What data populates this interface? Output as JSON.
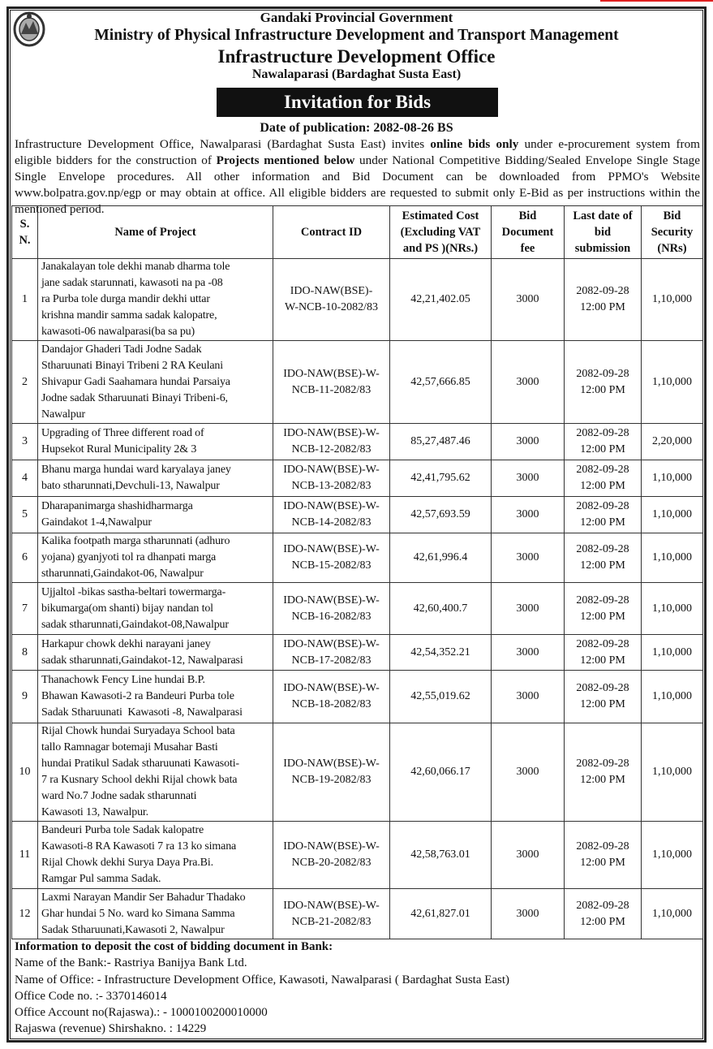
{
  "header": {
    "line1": "Gandaki Provincial Government",
    "line2": "Ministry of Physical Infrastructure Development and Transport Management",
    "line3": "Infrastructure Development Office",
    "line4": "Nawalaparasi  (Bardaghat Susta East)",
    "banner": "Invitation for Bids",
    "publication_date": "Date of publication: 2082-08-26 BS"
  },
  "intro": {
    "p1": "Infrastructure Development Office, Nawalparasi (Bardaghat Susta East) invites ",
    "b1": "online bids only",
    "p2": " under e-procurement system from eligible bidders for the construction of ",
    "b2": "Projects mentioned below",
    "p3": " under National Competitive Bidding/Sealed Envelope Single Stage Single Envelope procedures. All other information and Bid Document can be downloaded from PPMO's Website www.bolpatra.gov.np/egp or may obtain at office. All eligible bidders are requested to submit only E-Bid as per instructions within the mentioned period."
  },
  "table": {
    "headers": [
      "S.\nN.",
      "Name of Project",
      "Contract ID",
      "Estimated Cost\n(Excluding VAT\nand PS )(NRs.)",
      "Bid\nDocument\nfee",
      "Last date of\nbid\nsubmission",
      "Bid\nSecurity\n(NRs)"
    ],
    "rows": [
      {
        "sn": "1",
        "name": "Janakalayan tole dekhi manab dharma tole\njane sadak starunnati, kawasoti na pa -08\nra Purba tole durga mandir dekhi uttar\nkrishna mandir samma sadak kalopatre,\nkawasoti-06 nawalparasi(ba sa pu)",
        "cid": "IDO-NAW(BSE)-\nW-NCB-10-2082/83",
        "cost": "42,21,402.05",
        "fee": "3000",
        "date": "2082-09-28\n12:00 PM",
        "security": "1,10,000"
      },
      {
        "sn": "2",
        "name": "Dandajor Ghaderi Tadi Jodne Sadak\nStharuunati Binayi Tribeni 2 RA Keulani\nShivapur Gadi Saahamara hundai Parsaiya\nJodne sadak Stharuunati Binayi Tribeni-6,\nNawalpur",
        "cid": "IDO-NAW(BSE)-W-\nNCB-11-2082/83",
        "cost": "42,57,666.85",
        "fee": "3000",
        "date": "2082-09-28\n12:00 PM",
        "security": "1,10,000"
      },
      {
        "sn": "3",
        "name": "Upgrading of Three different road of\nHupsekot Rural Municipality 2& 3",
        "cid": "IDO-NAW(BSE)-W-\nNCB-12-2082/83",
        "cost": "85,27,487.46",
        "fee": "3000",
        "date": "2082-09-28\n12:00 PM",
        "security": "2,20,000"
      },
      {
        "sn": "4",
        "name": "Bhanu marga hundai ward karyalaya janey\nbato stharunnati,Devchuli-13, Nawalpur",
        "cid": "IDO-NAW(BSE)-W-\nNCB-13-2082/83",
        "cost": "42,41,795.62",
        "fee": "3000",
        "date": "2082-09-28\n12:00 PM",
        "security": "1,10,000"
      },
      {
        "sn": "5",
        "name": "Dharapanimarga shashidharmarga\nGaindakot 1-4,Nawalpur",
        "cid": "IDO-NAW(BSE)-W-\nNCB-14-2082/83",
        "cost": "42,57,693.59",
        "fee": "3000",
        "date": "2082-09-28\n12:00 PM",
        "security": "1,10,000"
      },
      {
        "sn": "6",
        "name": "Kalika footpath marga stharunnati (adhuro\nyojana) gyanjyoti tol ra dhanpati marga\nstharunnati,Gaindakot-06, Nawalpur",
        "cid": "IDO-NAW(BSE)-W-\nNCB-15-2082/83",
        "cost": "42,61,996.4",
        "fee": "3000",
        "date": "2082-09-28\n12:00 PM",
        "security": "1,10,000"
      },
      {
        "sn": "7",
        "name": "Ujjaltol -bikas sastha-beltari towermarga-\nbikumarga(om shanti) bijay nandan tol\nsadak stharunnati,Gaindakot-08,Nawalpur",
        "cid": "IDO-NAW(BSE)-W-\nNCB-16-2082/83",
        "cost": "42,60,400.7",
        "fee": "3000",
        "date": "2082-09-28\n12:00 PM",
        "security": "1,10,000"
      },
      {
        "sn": "8",
        "name": "Harkapur chowk dekhi narayani janey\nsadak stharunnati,Gaindakot-12, Nawalparasi",
        "cid": "IDO-NAW(BSE)-W-\nNCB-17-2082/83",
        "cost": "42,54,352.21",
        "fee": "3000",
        "date": "2082-09-28\n12:00 PM",
        "security": "1,10,000"
      },
      {
        "sn": "9",
        "name": "Thanachowk Fency Line hundai B.P.\nBhawan Kawasoti-2 ra Bandeuri Purba tole\nSadak Stharuunati  Kawasoti -8, Nawalparasi",
        "cid": "IDO-NAW(BSE)-W-\nNCB-18-2082/83",
        "cost": "42,55,019.62",
        "fee": "3000",
        "date": "2082-09-28\n12:00 PM",
        "security": "1,10,000"
      },
      {
        "sn": "10",
        "name": "Rijal Chowk hundai Suryadaya School bata\ntallo Ramnagar botemaji Musahar Basti\nhundai Pratikul Sadak stharuunati Kawasoti-\n7 ra Kusnary School dekhi Rijal chowk bata\nward No.7 Jodne sadak stharunnati\nKawasoti 13, Nawalpur.",
        "cid": "IDO-NAW(BSE)-W-\nNCB-19-2082/83",
        "cost": "42,60,066.17",
        "fee": "3000",
        "date": "2082-09-28\n12:00 PM",
        "security": "1,10,000"
      },
      {
        "sn": "11",
        "name": "Bandeuri Purba tole Sadak kalopatre\nKawasoti-8 RA Kawasoti 7 ra 13 ko simana\nRijal Chowk dekhi Surya Daya Pra.Bi.\nRamgar Pul samma Sadak.",
        "cid": "IDO-NAW(BSE)-W-\nNCB-20-2082/83",
        "cost": "42,58,763.01",
        "fee": "3000",
        "date": "2082-09-28\n12:00 PM",
        "security": "1,10,000"
      },
      {
        "sn": "12",
        "name": "Laxmi Narayan Mandir Ser Bahadur Thadako\nGhar hundai 5 No. ward ko Simana Samma\nSadak Stharuunati,Kawasoti 2, Nawalpur",
        "cid": "IDO-NAW(BSE)-W-\nNCB-21-2082/83",
        "cost": "42,61,827.01",
        "fee": "3000",
        "date": "2082-09-28\n12:00 PM",
        "security": "1,10,000"
      }
    ]
  },
  "bank": {
    "title": "Information  to deposit the cost of bidding document in Bank:",
    "lines": [
      "Name of the Bank:-  Rastriya Banijya Bank Ltd.",
      "Name of Office: - Infrastructure Development Office, Kawasoti, Nawalparasi ( Bardaghat Susta East)",
      "Office Code no. :- 3370146014",
      "Office Account no(Rajaswa).: - 1000100200010000",
      "Rajaswa (revenue) Shirshakno. : 14229"
    ]
  },
  "colors": {
    "banner_bg": "#111111",
    "banner_text": "#ffffff",
    "top_accent": "#e02020"
  }
}
